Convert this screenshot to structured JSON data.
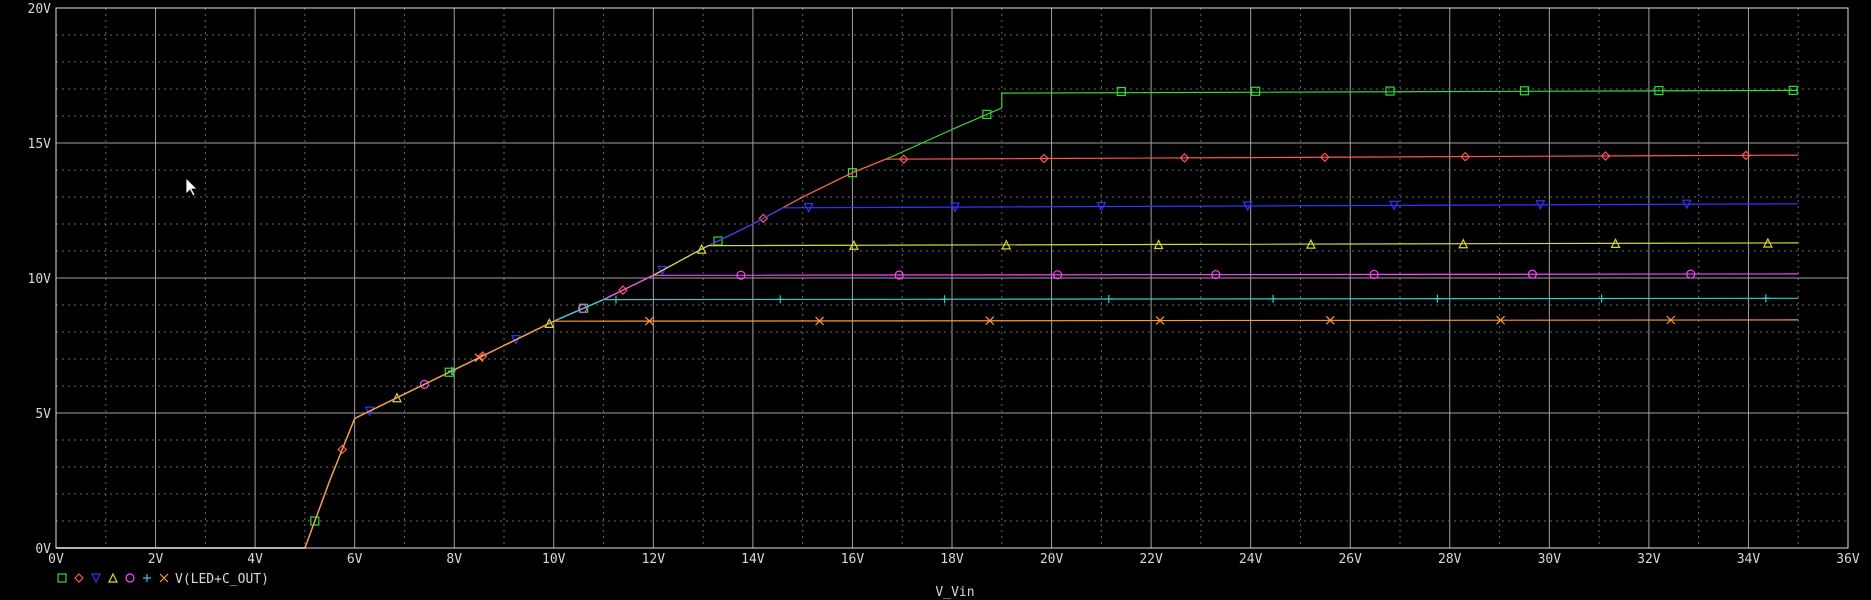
{
  "chart_data": {
    "type": "line",
    "xlabel": "V_Vin",
    "ylabel": "",
    "xlim": [
      0,
      36
    ],
    "ylim": [
      0,
      20
    ],
    "grid": true,
    "legend_placement": "bottom-left",
    "x_ticks": [
      "0V",
      "2V",
      "4V",
      "6V",
      "8V",
      "10V",
      "12V",
      "14V",
      "16V",
      "18V",
      "20V",
      "22V",
      "24V",
      "26V",
      "28V",
      "30V",
      "32V",
      "34V",
      "36V"
    ],
    "y_ticks": [
      "0V",
      "5V",
      "10V",
      "15V",
      "20V"
    ],
    "legend_label": "V(LED+C_OUT)",
    "common_rise": [
      [
        0,
        0
      ],
      [
        5,
        0
      ],
      [
        5.5,
        2.5
      ],
      [
        6,
        4.8
      ],
      [
        7,
        5.7
      ],
      [
        8,
        6.6
      ],
      [
        9,
        7.5
      ],
      [
        10,
        8.4
      ],
      [
        11,
        9.2
      ],
      [
        12,
        10.1
      ],
      [
        13,
        11.1
      ],
      [
        14,
        12.0
      ],
      [
        15,
        13.0
      ],
      [
        16,
        13.9
      ],
      [
        16.8,
        14.5
      ],
      [
        18,
        15.5
      ],
      [
        19,
        16.3
      ],
      [
        19,
        16.85
      ]
    ],
    "series": [
      {
        "marker": "square",
        "color": "#33dd33",
        "plateau": 16.9,
        "end": 16.95,
        "sat_x": 19.0
      },
      {
        "marker": "diamond",
        "color": "#ff5555",
        "plateau": 14.4,
        "end": 14.55,
        "sat_x": 16.8
      },
      {
        "marker": "triangle-down",
        "color": "#3333ff",
        "plateau": 12.6,
        "end": 12.75,
        "sat_x": 15.0
      },
      {
        "marker": "triangle-up",
        "color": "#d8d83a",
        "plateau": 11.2,
        "end": 11.3,
        "sat_x": 13.0
      },
      {
        "marker": "circle",
        "color": "#ff44ff",
        "plateau": 10.1,
        "end": 10.15,
        "sat_x": 11.6
      },
      {
        "marker": "plus",
        "color": "#33cccc",
        "plateau": 9.2,
        "end": 9.25,
        "sat_x": 10.8
      },
      {
        "marker": "x",
        "color": "#ff9933",
        "plateau": 8.4,
        "end": 8.45,
        "sat_x": 10.0
      }
    ],
    "cursor_icon": "mouse-pointer-icon"
  }
}
